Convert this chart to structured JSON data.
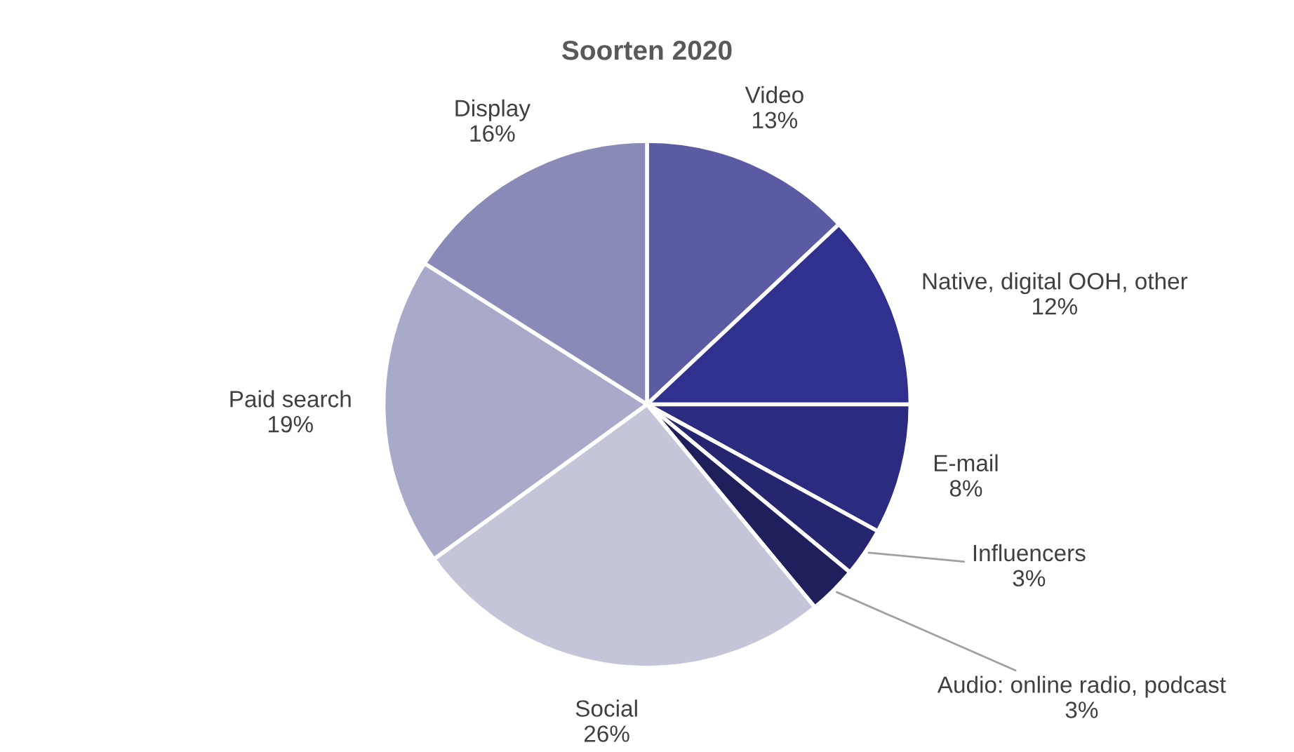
{
  "chart_data": {
    "type": "pie",
    "title": "Soorten 2020",
    "categories": [
      "Video",
      "Native, digital OOH, other",
      "E-mail",
      "Influencers",
      "Audio: online radio, podcast",
      "Social",
      "Paid search",
      "Display"
    ],
    "values": [
      13,
      12,
      8,
      3,
      3,
      26,
      19,
      16
    ],
    "colors": [
      "#5b5ba3",
      "#30308f",
      "#2b2b80",
      "#262670",
      "#1f1f5c",
      "#c5c5da",
      "#a9a9c9",
      "#8a8ab8"
    ],
    "value_labels": [
      "13%",
      "12%",
      "8%",
      "3%",
      "3%",
      "26%",
      "19%",
      "16%"
    ],
    "legend": false
  }
}
